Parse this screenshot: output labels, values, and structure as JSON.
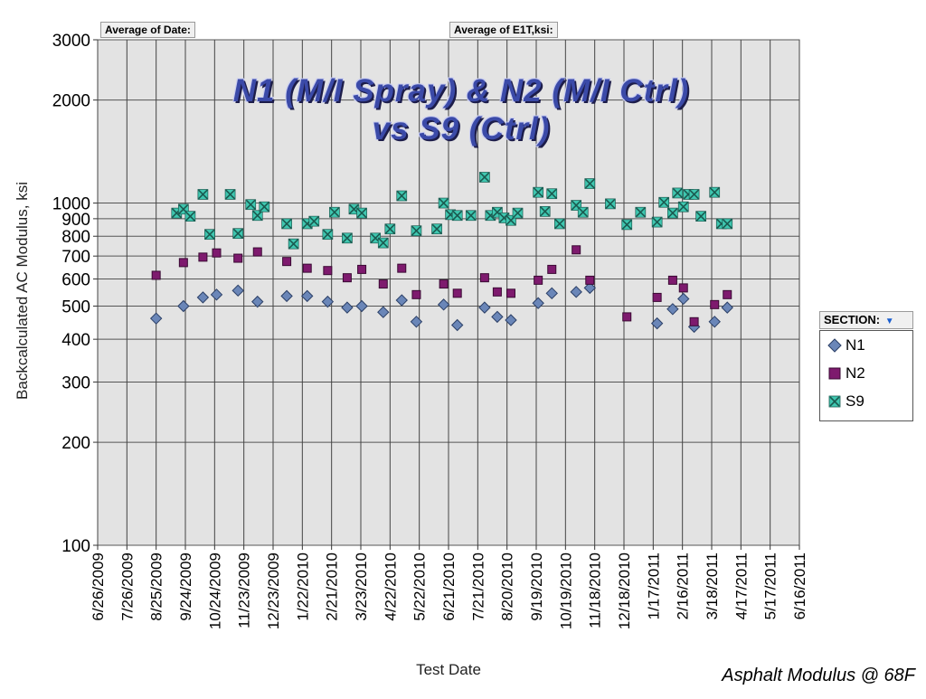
{
  "field_buttons": {
    "date_field": "Average of Date:",
    "value_field": "Average of E1T,ksi:"
  },
  "title_line1": "N1 (M/I Spray) & N2 (M/I Ctrl)",
  "title_line2": "vs S9 (Ctrl)",
  "footer": "Asphalt Modulus @ 68F",
  "legend": {
    "header": "SECTION:",
    "dropdown_icon": "dropdown-arrow-icon",
    "items": [
      {
        "label": "N1",
        "marker": "diamond",
        "color": "#6a86b8"
      },
      {
        "label": "N2",
        "marker": "square",
        "color": "#7e1a6e"
      },
      {
        "label": "S9",
        "marker": "x-box",
        "color": "#3fc7b0"
      }
    ]
  },
  "chart_data": {
    "type": "scatter",
    "title": "N1 (M/I Spray) & N2 (M/I Ctrl) vs S9 (Ctrl)",
    "xlabel": "Test Date",
    "ylabel": "Backcalculated AC Modulus, ksi",
    "yscale": "log",
    "ylim": [
      100,
      3000
    ],
    "y_ticks": [
      100,
      200,
      300,
      400,
      500,
      600,
      700,
      800,
      900,
      1000,
      2000,
      3000
    ],
    "x_ticks": [
      "6/26/2009",
      "7/26/2009",
      "8/25/2009",
      "9/24/2009",
      "10/24/2009",
      "11/23/2009",
      "12/23/2009",
      "1/22/2010",
      "2/21/2010",
      "3/23/2010",
      "4/22/2010",
      "5/22/2010",
      "6/21/2010",
      "7/21/2010",
      "8/20/2010",
      "9/19/2010",
      "10/19/2010",
      "11/18/2010",
      "12/18/2010",
      "1/17/2011",
      "2/16/2011",
      "3/18/2011",
      "4/17/2011",
      "5/17/2011",
      "6/16/2011"
    ],
    "grid": true,
    "legend_position": "right",
    "series": [
      {
        "name": "N1",
        "marker": "diamond",
        "color": "#6a86b8",
        "points": [
          {
            "x": "2009-08-25",
            "y": 460
          },
          {
            "x": "2009-09-22",
            "y": 500
          },
          {
            "x": "2009-10-12",
            "y": 530
          },
          {
            "x": "2009-10-26",
            "y": 540
          },
          {
            "x": "2009-11-17",
            "y": 555
          },
          {
            "x": "2009-12-07",
            "y": 515
          },
          {
            "x": "2010-01-06",
            "y": 535
          },
          {
            "x": "2010-01-27",
            "y": 535
          },
          {
            "x": "2010-02-17",
            "y": 515
          },
          {
            "x": "2010-03-09",
            "y": 495
          },
          {
            "x": "2010-03-24",
            "y": 500
          },
          {
            "x": "2010-04-15",
            "y": 480
          },
          {
            "x": "2010-05-04",
            "y": 520
          },
          {
            "x": "2010-05-19",
            "y": 450
          },
          {
            "x": "2010-06-16",
            "y": 505
          },
          {
            "x": "2010-06-30",
            "y": 440
          },
          {
            "x": "2010-07-28",
            "y": 495
          },
          {
            "x": "2010-08-10",
            "y": 465
          },
          {
            "x": "2010-08-24",
            "y": 455
          },
          {
            "x": "2010-09-21",
            "y": 510
          },
          {
            "x": "2010-10-05",
            "y": 545
          },
          {
            "x": "2010-10-30",
            "y": 550
          },
          {
            "x": "2010-11-13",
            "y": 565
          },
          {
            "x": "2011-01-21",
            "y": 445
          },
          {
            "x": "2011-02-06",
            "y": 490
          },
          {
            "x": "2011-02-17",
            "y": 525
          },
          {
            "x": "2011-02-28",
            "y": 435
          },
          {
            "x": "2011-03-21",
            "y": 450
          },
          {
            "x": "2011-04-03",
            "y": 495
          }
        ]
      },
      {
        "name": "N2",
        "marker": "square",
        "color": "#7e1a6e",
        "points": [
          {
            "x": "2009-08-25",
            "y": 615
          },
          {
            "x": "2009-09-22",
            "y": 670
          },
          {
            "x": "2009-10-12",
            "y": 695
          },
          {
            "x": "2009-10-26",
            "y": 715
          },
          {
            "x": "2009-11-17",
            "y": 690
          },
          {
            "x": "2009-12-07",
            "y": 720
          },
          {
            "x": "2010-01-06",
            "y": 675
          },
          {
            "x": "2010-01-27",
            "y": 645
          },
          {
            "x": "2010-02-17",
            "y": 635
          },
          {
            "x": "2010-03-09",
            "y": 605
          },
          {
            "x": "2010-03-24",
            "y": 640
          },
          {
            "x": "2010-04-15",
            "y": 580
          },
          {
            "x": "2010-05-04",
            "y": 645
          },
          {
            "x": "2010-05-19",
            "y": 540
          },
          {
            "x": "2010-06-16",
            "y": 580
          },
          {
            "x": "2010-06-30",
            "y": 545
          },
          {
            "x": "2010-07-28",
            "y": 605
          },
          {
            "x": "2010-08-10",
            "y": 550
          },
          {
            "x": "2010-08-24",
            "y": 545
          },
          {
            "x": "2010-09-21",
            "y": 595
          },
          {
            "x": "2010-10-05",
            "y": 640
          },
          {
            "x": "2010-10-30",
            "y": 730
          },
          {
            "x": "2010-11-13",
            "y": 595
          },
          {
            "x": "2010-12-21",
            "y": 465
          },
          {
            "x": "2011-01-21",
            "y": 530
          },
          {
            "x": "2011-02-06",
            "y": 595
          },
          {
            "x": "2011-02-17",
            "y": 565
          },
          {
            "x": "2011-02-28",
            "y": 450
          },
          {
            "x": "2011-03-21",
            "y": 505
          },
          {
            "x": "2011-04-03",
            "y": 540
          }
        ]
      },
      {
        "name": "S9",
        "marker": "x-box",
        "color": "#3fc7b0",
        "points": [
          {
            "x": "2009-09-15",
            "y": 935
          },
          {
            "x": "2009-09-22",
            "y": 960
          },
          {
            "x": "2009-09-29",
            "y": 915
          },
          {
            "x": "2009-10-12",
            "y": 1060
          },
          {
            "x": "2009-10-19",
            "y": 810
          },
          {
            "x": "2009-11-09",
            "y": 1060
          },
          {
            "x": "2009-11-17",
            "y": 815
          },
          {
            "x": "2009-11-30",
            "y": 990
          },
          {
            "x": "2009-12-07",
            "y": 920
          },
          {
            "x": "2009-12-14",
            "y": 975
          },
          {
            "x": "2010-01-06",
            "y": 870
          },
          {
            "x": "2010-01-13",
            "y": 760
          },
          {
            "x": "2010-01-27",
            "y": 870
          },
          {
            "x": "2010-02-03",
            "y": 885
          },
          {
            "x": "2010-02-17",
            "y": 810
          },
          {
            "x": "2010-02-24",
            "y": 940
          },
          {
            "x": "2010-03-09",
            "y": 790
          },
          {
            "x": "2010-03-16",
            "y": 960
          },
          {
            "x": "2010-03-24",
            "y": 935
          },
          {
            "x": "2010-04-07",
            "y": 790
          },
          {
            "x": "2010-04-15",
            "y": 765
          },
          {
            "x": "2010-04-22",
            "y": 840
          },
          {
            "x": "2010-05-04",
            "y": 1050
          },
          {
            "x": "2010-05-19",
            "y": 830
          },
          {
            "x": "2010-06-09",
            "y": 840
          },
          {
            "x": "2010-06-16",
            "y": 1000
          },
          {
            "x": "2010-06-23",
            "y": 925
          },
          {
            "x": "2010-06-30",
            "y": 920
          },
          {
            "x": "2010-07-14",
            "y": 920
          },
          {
            "x": "2010-07-28",
            "y": 1190
          },
          {
            "x": "2010-08-03",
            "y": 920
          },
          {
            "x": "2010-08-10",
            "y": 940
          },
          {
            "x": "2010-08-17",
            "y": 905
          },
          {
            "x": "2010-08-24",
            "y": 890
          },
          {
            "x": "2010-08-31",
            "y": 935
          },
          {
            "x": "2010-09-21",
            "y": 1075
          },
          {
            "x": "2010-09-28",
            "y": 945
          },
          {
            "x": "2010-10-05",
            "y": 1065
          },
          {
            "x": "2010-10-13",
            "y": 870
          },
          {
            "x": "2010-10-30",
            "y": 985
          },
          {
            "x": "2010-11-06",
            "y": 940
          },
          {
            "x": "2010-11-13",
            "y": 1140
          },
          {
            "x": "2010-12-04",
            "y": 995
          },
          {
            "x": "2010-12-21",
            "y": 865
          },
          {
            "x": "2011-01-04",
            "y": 940
          },
          {
            "x": "2011-01-21",
            "y": 880
          },
          {
            "x": "2011-01-28",
            "y": 1005
          },
          {
            "x": "2011-02-06",
            "y": 935
          },
          {
            "x": "2011-02-11",
            "y": 1070
          },
          {
            "x": "2011-02-17",
            "y": 975
          },
          {
            "x": "2011-02-22",
            "y": 1060
          },
          {
            "x": "2011-02-28",
            "y": 1060
          },
          {
            "x": "2011-03-07",
            "y": 915
          },
          {
            "x": "2011-03-21",
            "y": 1075
          },
          {
            "x": "2011-03-28",
            "y": 870
          },
          {
            "x": "2011-04-03",
            "y": 870
          }
        ]
      }
    ]
  }
}
